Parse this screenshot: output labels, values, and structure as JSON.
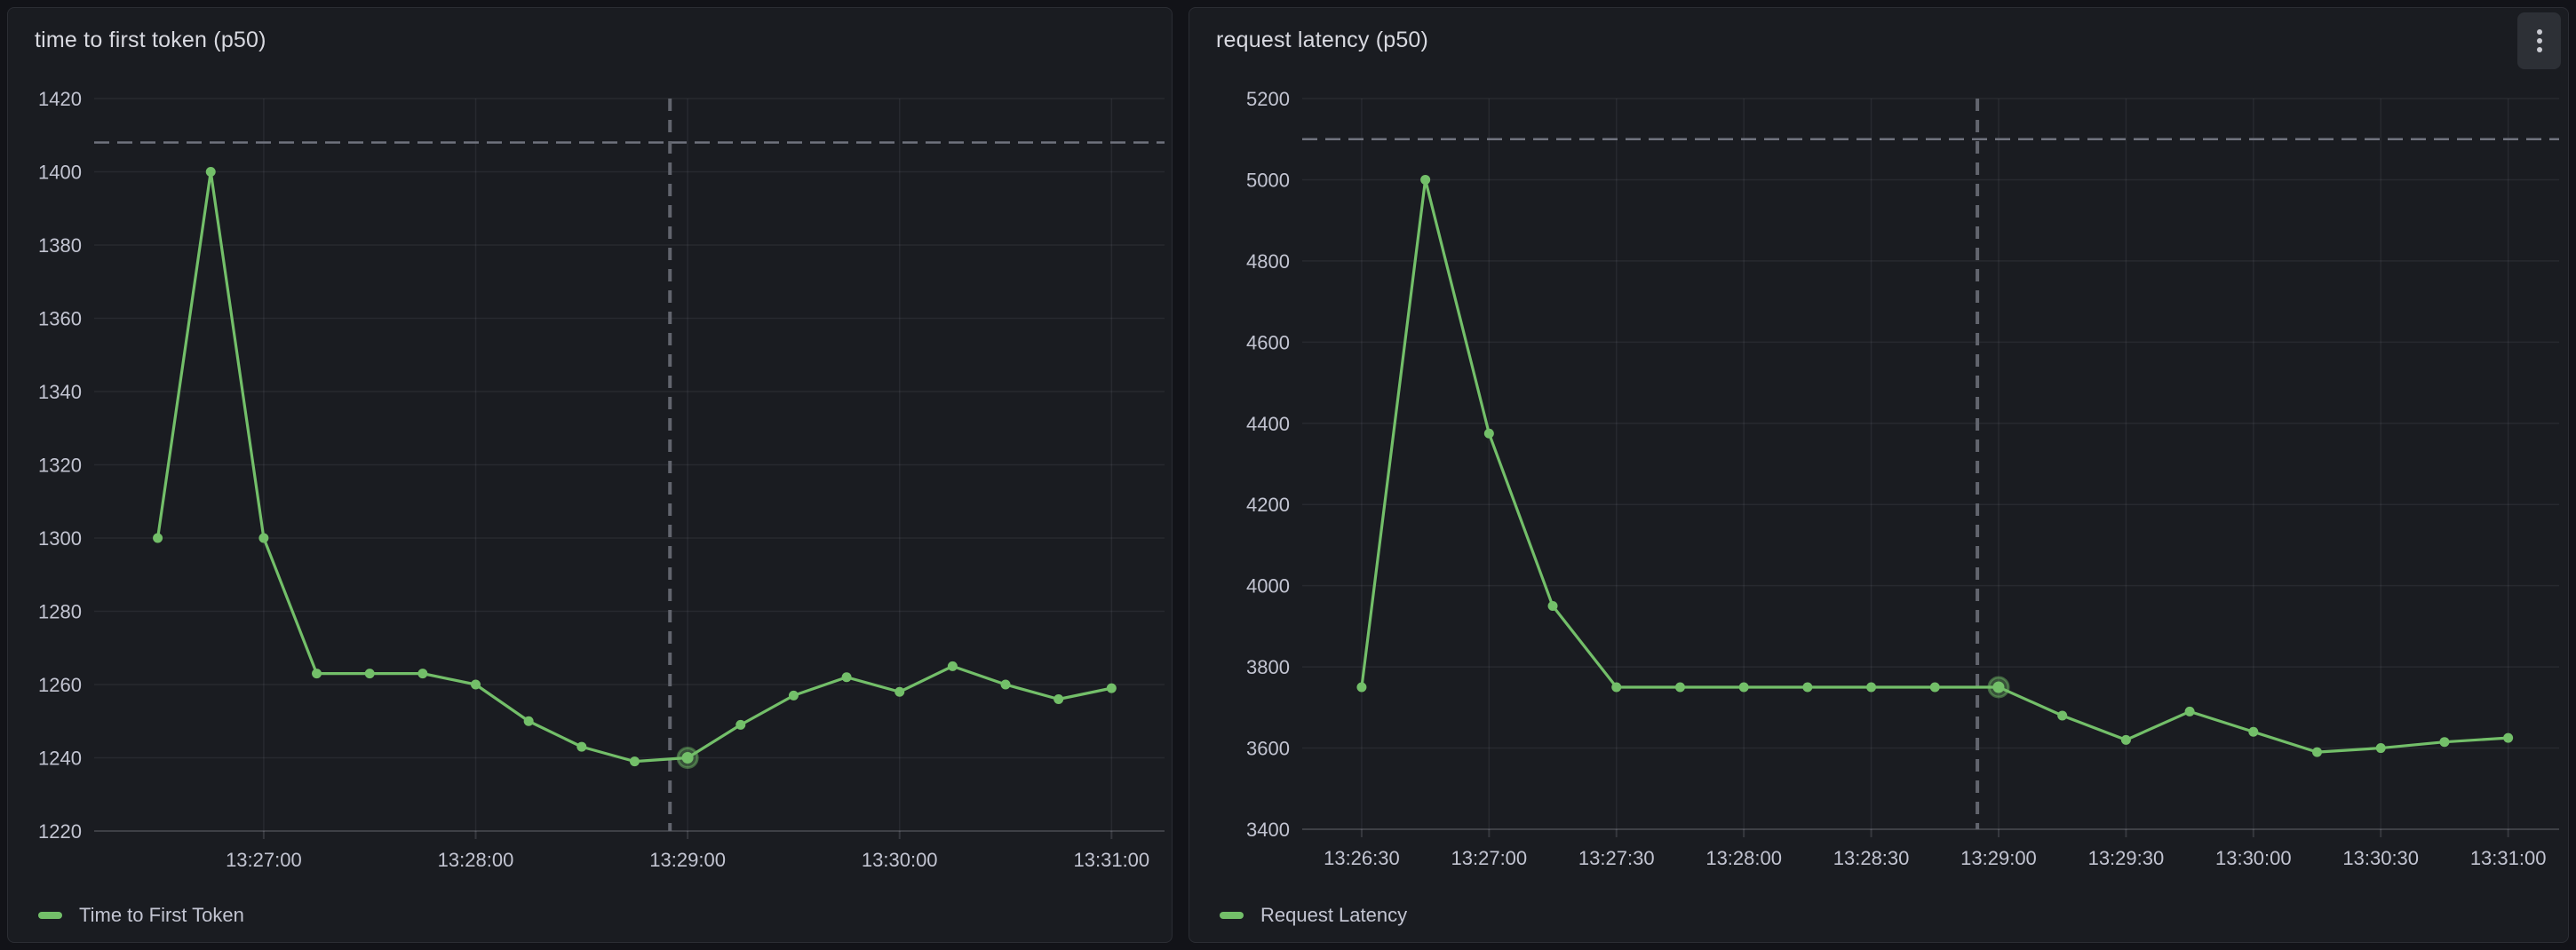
{
  "colors": {
    "page_bg": "#121318",
    "panel_bg": "#1A1C21",
    "panel_border": "#2B2D33",
    "grid": "rgba(204,204,220,0.08)",
    "axis": "rgba(204,204,220,0.16)",
    "tick_text": "#C2C4D1",
    "title_text": "#D8D9E0",
    "threshold": "#70737E",
    "crosshair": "#62656E",
    "series_green": "#73BF69",
    "kebab_bg": "#2D3036",
    "kebab_dot": "#C9CAD1"
  },
  "panels": [
    {
      "title": "time to first token (p50)",
      "kebab_menu": false,
      "legend": {
        "label": "Time to First Token",
        "color": "#73BF69"
      }
    },
    {
      "title": "request latency (p50)",
      "kebab_menu": true,
      "menu_icon": "kebab-vertical-icon",
      "legend": {
        "label": "Request Latency",
        "color": "#73BF69"
      }
    }
  ],
  "chart_data": [
    {
      "type": "line",
      "title": "time to first token (p50)",
      "x": [
        "13:26:30",
        "13:26:45",
        "13:27:00",
        "13:27:15",
        "13:27:30",
        "13:27:45",
        "13:28:00",
        "13:28:15",
        "13:28:30",
        "13:28:45",
        "13:29:00",
        "13:29:15",
        "13:29:30",
        "13:29:45",
        "13:30:00",
        "13:30:15",
        "13:30:30",
        "13:30:45",
        "13:31:00"
      ],
      "series": [
        {
          "name": "Time to First Token",
          "color": "#73BF69",
          "values": [
            1300,
            1400,
            1300,
            1263,
            1263,
            1263,
            1260,
            1250,
            1243,
            1239,
            1240,
            1249,
            1257,
            1262,
            1258,
            1265,
            1260,
            1256,
            1259
          ]
        }
      ],
      "xlim": [
        "13:26:12",
        "13:31:15"
      ],
      "ylim": [
        1220,
        1420
      ],
      "y_ticks": [
        1220,
        1240,
        1260,
        1280,
        1300,
        1320,
        1340,
        1360,
        1380,
        1400,
        1420
      ],
      "x_ticks": [
        "13:27:00",
        "13:28:00",
        "13:29:00",
        "13:30:00",
        "13:31:00"
      ],
      "threshold": 1408,
      "crosshair_time": "13:28:55",
      "highlight_x": "13:29:00",
      "grid": true,
      "legend_position": "bottom"
    },
    {
      "type": "line",
      "title": "request latency (p50)",
      "x": [
        "13:26:30",
        "13:26:45",
        "13:27:00",
        "13:27:15",
        "13:27:30",
        "13:27:45",
        "13:28:00",
        "13:28:15",
        "13:28:30",
        "13:28:45",
        "13:29:00",
        "13:29:15",
        "13:29:30",
        "13:29:45",
        "13:30:00",
        "13:30:15",
        "13:30:30",
        "13:30:45",
        "13:31:00"
      ],
      "series": [
        {
          "name": "Request Latency",
          "color": "#73BF69",
          "values": [
            3750,
            5000,
            4375,
            3950,
            3750,
            3750,
            3750,
            3750,
            3750,
            3750,
            3750,
            3680,
            3620,
            3690,
            3640,
            3590,
            3600,
            3615,
            3625
          ]
        }
      ],
      "xlim": [
        "13:26:16",
        "13:31:12"
      ],
      "ylim": [
        3400,
        5200
      ],
      "y_ticks": [
        3400,
        3600,
        3800,
        4000,
        4200,
        4400,
        4600,
        4800,
        5000,
        5200
      ],
      "x_ticks": [
        "13:26:30",
        "13:27:00",
        "13:27:30",
        "13:28:00",
        "13:28:30",
        "13:29:00",
        "13:29:30",
        "13:30:00",
        "13:30:30",
        "13:31:00"
      ],
      "threshold": 5100,
      "crosshair_time": "13:28:55",
      "highlight_x": "13:29:00",
      "grid": true,
      "legend_position": "bottom"
    }
  ]
}
